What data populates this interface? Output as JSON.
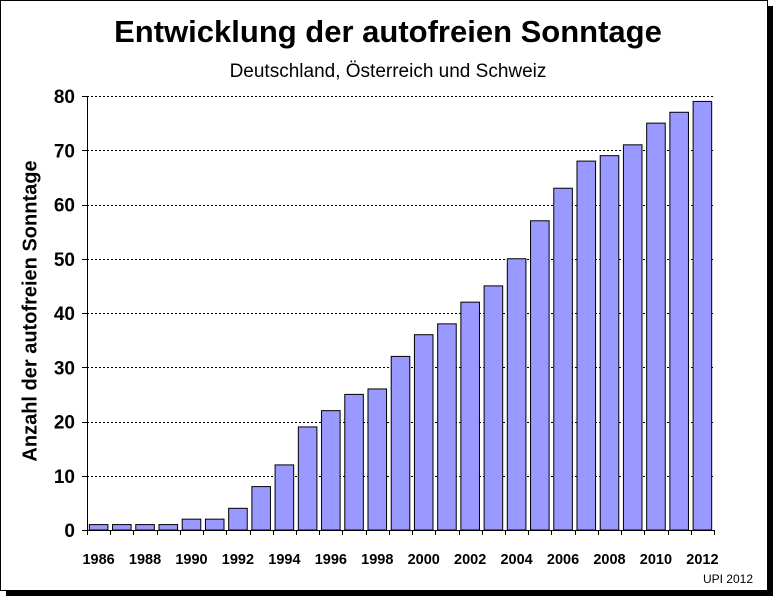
{
  "chart_data": {
    "type": "bar",
    "title": "Entwicklung der autofreien Sonntage",
    "subtitle": "Deutschland, Österreich und Schweiz",
    "xlabel": "",
    "ylabel": "Anzahl der autofreien Sonntage",
    "categories": [
      "1986",
      "1987",
      "1988",
      "1989",
      "1990",
      "1991",
      "1992",
      "1993",
      "1994",
      "1995",
      "1996",
      "1997",
      "1998",
      "1999",
      "2000",
      "2001",
      "2002",
      "2003",
      "2004",
      "2005",
      "2006",
      "2007",
      "2008",
      "2009",
      "2010",
      "2011",
      "2012"
    ],
    "x_tick_labels": [
      "1986",
      "1988",
      "1990",
      "1992",
      "1994",
      "1996",
      "1998",
      "2000",
      "2002",
      "2004",
      "2006",
      "2008",
      "2010",
      "2012"
    ],
    "values": [
      1,
      1,
      1,
      1,
      2,
      2,
      4,
      8,
      12,
      19,
      22,
      25,
      26,
      32,
      36,
      38,
      42,
      45,
      50,
      57,
      63,
      68,
      69,
      71,
      75,
      77,
      79
    ],
    "ylim": [
      0,
      80
    ],
    "yticks": [
      0,
      10,
      20,
      30,
      40,
      50,
      60,
      70,
      80
    ],
    "grid": "horizontal dashed",
    "colors": {
      "bar_fill": "#9999ff",
      "bar_stroke": "#000000"
    }
  },
  "footer": "UPI 2012"
}
